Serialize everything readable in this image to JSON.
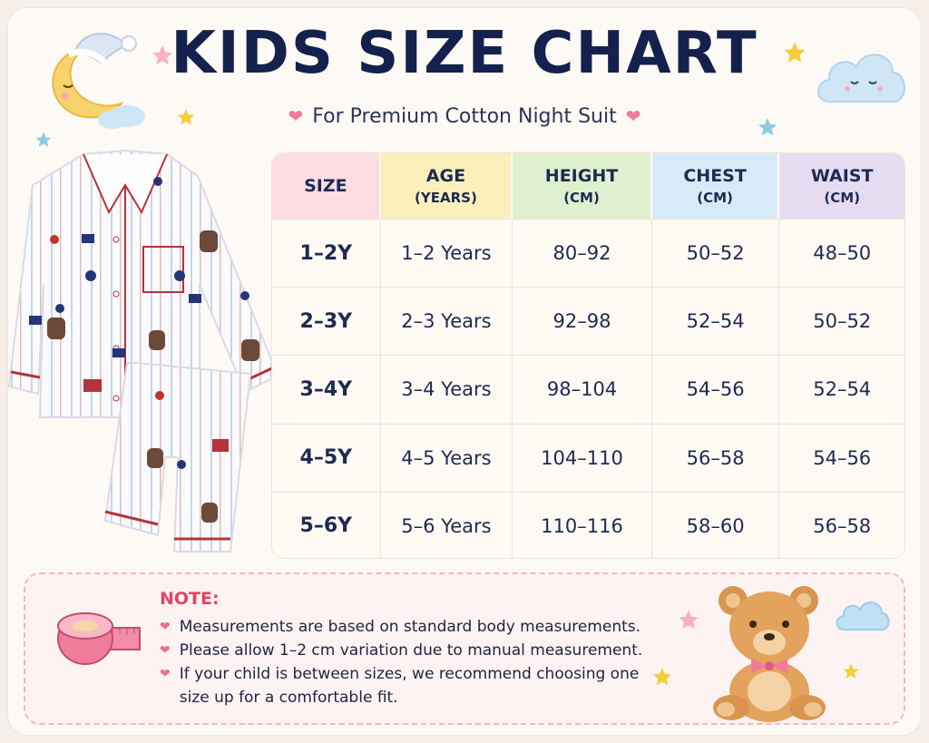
{
  "header": {
    "title": "KIDS SIZE CHART",
    "subtitle": "For Premium Cotton Night Suit"
  },
  "table": {
    "columns": [
      {
        "line1": "SIZE",
        "line2": "",
        "color": "#fbdde2"
      },
      {
        "line1": "AGE",
        "line2": "(YEARS)",
        "color": "#fbf0bc"
      },
      {
        "line1": "HEIGHT",
        "line2": "(CM)",
        "color": "#dff0cf"
      },
      {
        "line1": "CHEST",
        "line2": "(CM)",
        "color": "#d6ebf7"
      },
      {
        "line1": "WAIST",
        "line2": "(CM)",
        "color": "#e5dcf2"
      }
    ],
    "rows": [
      [
        "1–2Y",
        "1–2 Years",
        "80–92",
        "50–52",
        "48–50"
      ],
      [
        "2–3Y",
        "2–3 Years",
        "92–98",
        "52–54",
        "50–52"
      ],
      [
        "3–4Y",
        "3–4 Years",
        "98–104",
        "54–56",
        "52–54"
      ],
      [
        "4–5Y",
        "4–5 Years",
        "104–110",
        "56–58",
        "54–56"
      ],
      [
        "5–6Y",
        "5–6 Years",
        "110–116",
        "58–60",
        "56–58"
      ]
    ]
  },
  "note": {
    "title": "NOTE:",
    "items": [
      "Measurements are based on standard body measurements.",
      "Please allow 1–2 cm variation due to manual measurement.",
      "If your child is between sizes, we recommend choosing one size up for a comfortable fit."
    ]
  },
  "icons": {
    "moon": "sleeping-moon-icon",
    "cloud": "cloud-icon",
    "star": "star-icon",
    "heart": "heart-icon",
    "pajamas": "pajama-set-illustration",
    "tape": "measuring-tape-icon",
    "bear": "teddy-bear-icon"
  },
  "colors": {
    "title": "#14214d",
    "accent_pink": "#e24466",
    "heart": "#f07b96"
  }
}
